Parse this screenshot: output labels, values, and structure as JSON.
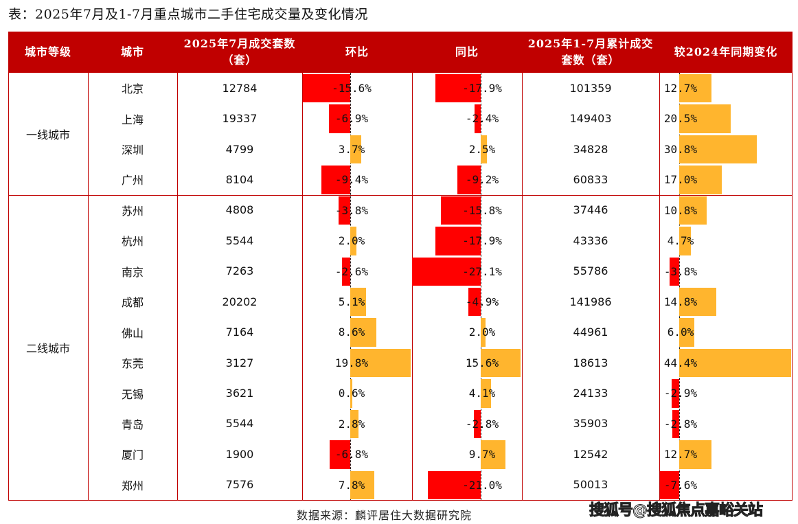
{
  "title": "表：2025年7月及1-7月重点城市二手住宅成交量及变化情况",
  "headers": [
    "城市等级",
    "城市",
    "2025年7月成交套数（套）",
    "环比",
    "同比",
    "2025年1-7月累计成交套数（套）",
    "较2024年同期变化"
  ],
  "tiers": [
    {
      "label": "一线城市",
      "rows": 4
    },
    {
      "label": "二线城市",
      "rows": 10
    }
  ],
  "colors": {
    "header": "#C00000",
    "negative_bar": "#FF0000",
    "positive_bar": "#FFB52E",
    "border": "#C00000"
  },
  "chart_data": {
    "type": "table",
    "columns": [
      "城市",
      "2025年7月成交套数（套）",
      "环比",
      "同比",
      "2025年1-7月累计成交套数（套）",
      "较2024年同期变化"
    ],
    "rows": [
      {
        "city": "北京",
        "july": "12784",
        "mom": -15.6,
        "yoy": -17.9,
        "ytd": "101359",
        "vs2024": 12.7
      },
      {
        "city": "上海",
        "july": "19337",
        "mom": -6.9,
        "yoy": -2.4,
        "ytd": "149403",
        "vs2024": 20.5
      },
      {
        "city": "深圳",
        "july": "4799",
        "mom": 3.7,
        "yoy": 2.5,
        "ytd": "34828",
        "vs2024": 30.8
      },
      {
        "city": "广州",
        "july": "8104",
        "mom": -9.4,
        "yoy": -9.2,
        "ytd": "60833",
        "vs2024": 17.0
      },
      {
        "city": "苏州",
        "july": "4808",
        "mom": -3.8,
        "yoy": -15.8,
        "ytd": "37446",
        "vs2024": 10.8
      },
      {
        "city": "杭州",
        "july": "5544",
        "mom": 2.0,
        "yoy": -17.9,
        "ytd": "43336",
        "vs2024": 4.7
      },
      {
        "city": "南京",
        "july": "7263",
        "mom": -2.6,
        "yoy": -27.1,
        "ytd": "55786",
        "vs2024": -3.8
      },
      {
        "city": "成都",
        "july": "20202",
        "mom": 5.1,
        "yoy": -4.9,
        "ytd": "141986",
        "vs2024": 14.8
      },
      {
        "city": "佛山",
        "july": "7164",
        "mom": 8.6,
        "yoy": 2.0,
        "ytd": "44961",
        "vs2024": 6.0
      },
      {
        "city": "东莞",
        "july": "3127",
        "mom": 19.8,
        "yoy": 15.6,
        "ytd": "18613",
        "vs2024": 44.4
      },
      {
        "city": "无锡",
        "july": "3621",
        "mom": 0.6,
        "yoy": 4.1,
        "ytd": "24133",
        "vs2024": -2.9
      },
      {
        "city": "青岛",
        "july": "5544",
        "mom": 2.8,
        "yoy": -2.8,
        "ytd": "35903",
        "vs2024": -2.8
      },
      {
        "city": "厦门",
        "july": "1900",
        "mom": -6.8,
        "yoy": 9.7,
        "ytd": "12542",
        "vs2024": 12.7
      },
      {
        "city": "郑州",
        "july": "7576",
        "mom": 7.8,
        "yoy": -21.0,
        "ytd": "50013",
        "vs2024": -7.6
      }
    ]
  },
  "source": "数据来源：麟评居住大数据研究院",
  "watermark": "搜狐号@搜狐焦点嘉峪关站"
}
